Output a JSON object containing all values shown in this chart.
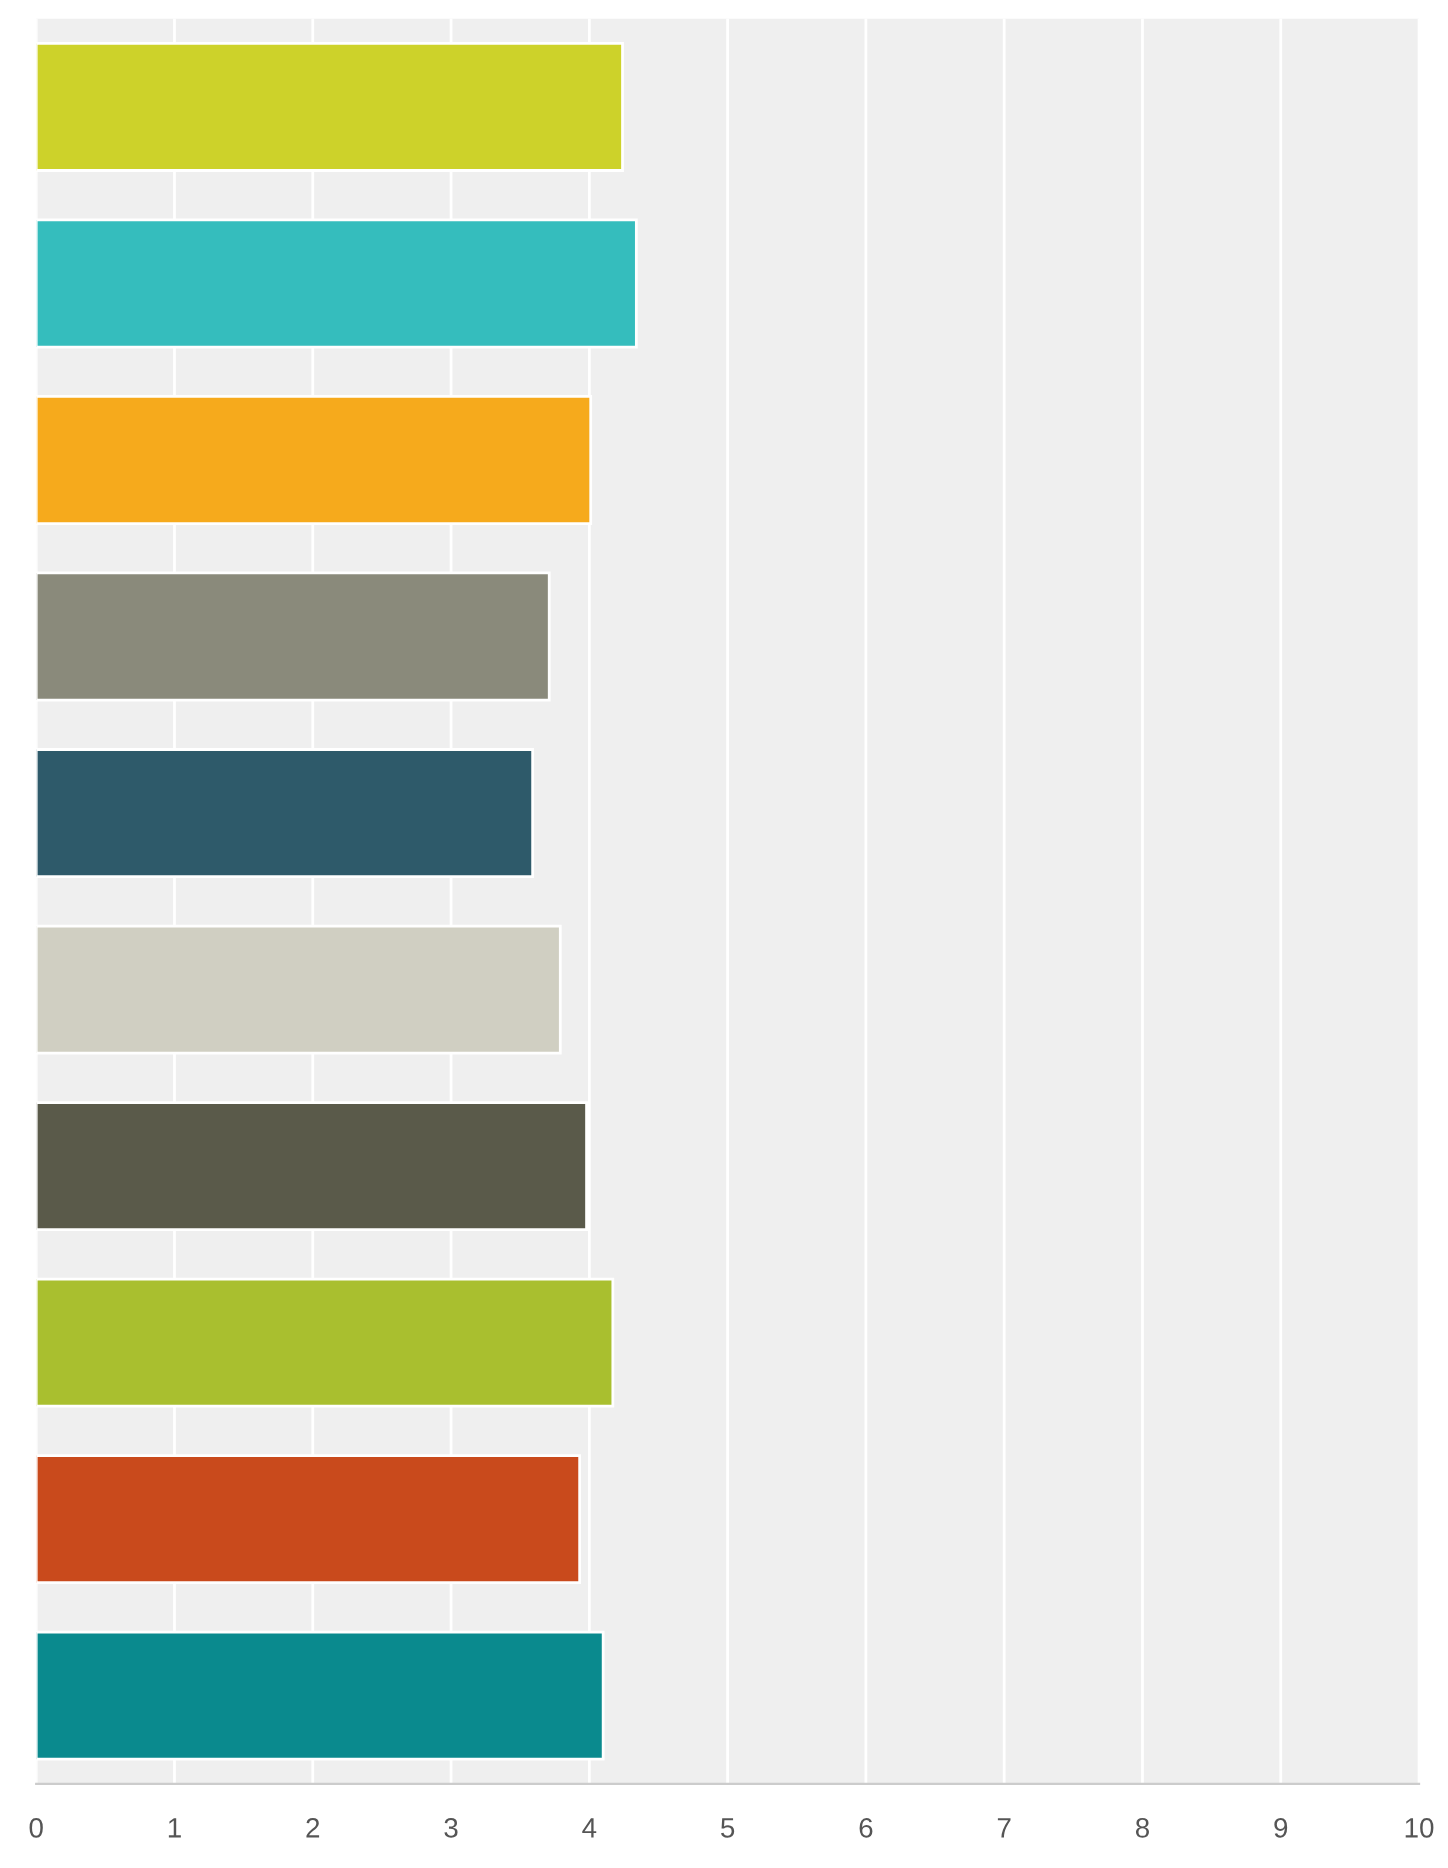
{
  "chart_data": {
    "type": "bar",
    "orientation": "horizontal",
    "categories": [
      null,
      null,
      null,
      null,
      null,
      null,
      null,
      null,
      null,
      null
    ],
    "values": [
      4.24,
      4.34,
      4.01,
      3.71,
      3.59,
      3.79,
      3.98,
      4.17,
      3.93,
      4.1
    ],
    "colors": [
      "#cdd22a",
      "#35bdbd",
      "#f6aa1c",
      "#8a8a7b",
      "#2e5a6a",
      "#d0cfc2",
      "#5a5a4a",
      "#a9bf2f",
      "#c94a1c",
      "#0a8a8e"
    ],
    "xlim": [
      0,
      10
    ],
    "xticks": [
      0,
      1,
      2,
      3,
      4,
      5,
      6,
      7,
      8,
      9,
      10
    ],
    "grid": "x"
  }
}
